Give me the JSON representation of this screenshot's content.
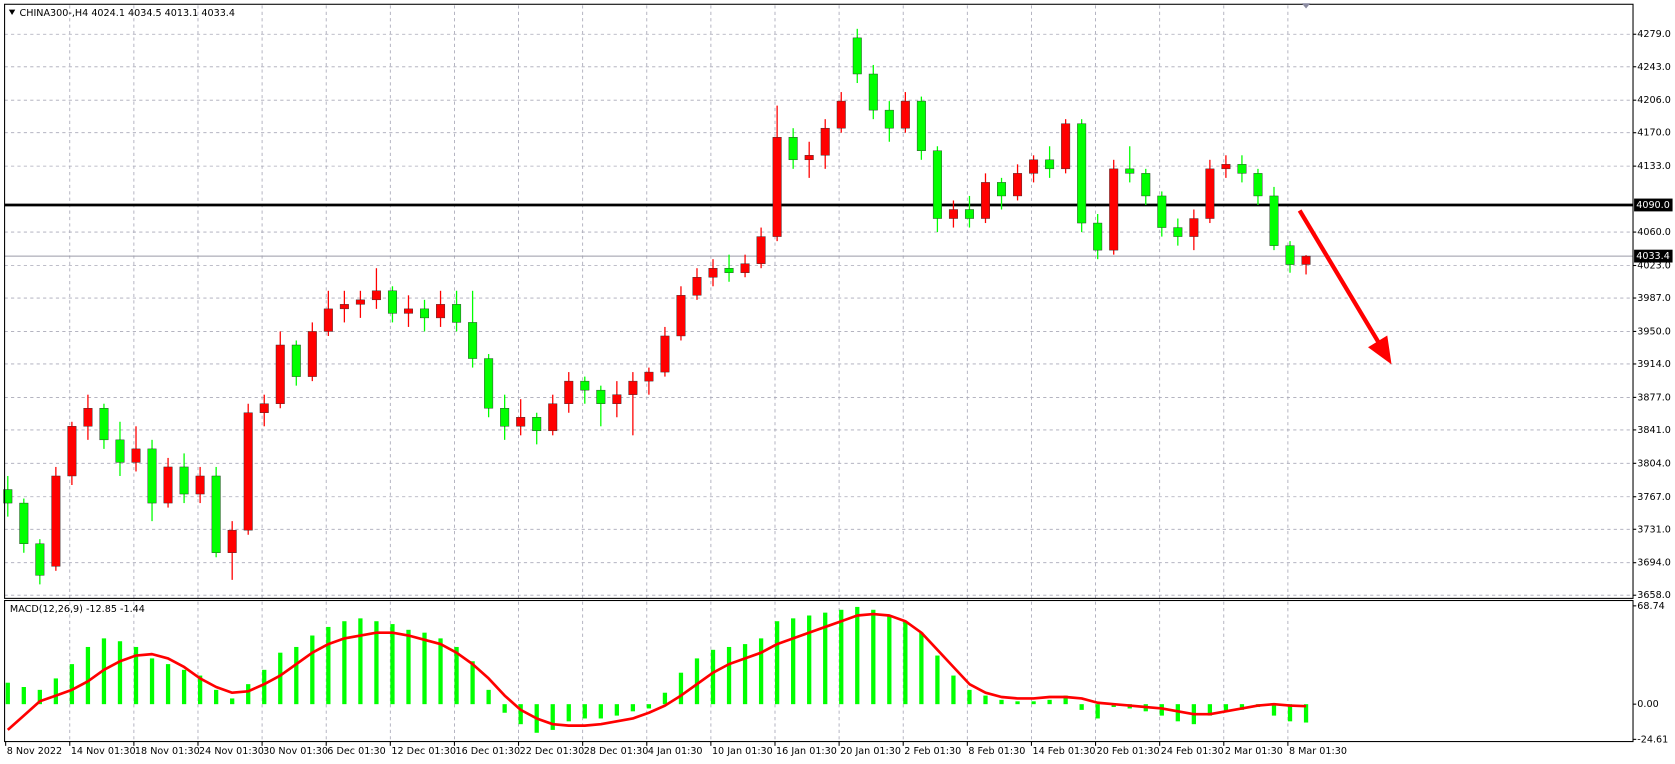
{
  "chart_data": [
    {
      "type": "candlestick",
      "title": "CHINA300-,H4  4024.1 4034.5 4013.1 4033.4",
      "up_color": "#ff0000",
      "down_color": "#00ff00",
      "categories": [
        "8 Nov 2022",
        null,
        null,
        null,
        "14 Nov 01:30",
        null,
        null,
        null,
        "18 Nov 01:30",
        null,
        null,
        null,
        "24 Nov 01:30",
        null,
        null,
        null,
        "30 Nov 01:30",
        null,
        null,
        null,
        "6 Dec 01:30",
        null,
        null,
        null,
        "12 Dec 01:30",
        null,
        null,
        null,
        "16 Dec 01:30",
        null,
        null,
        null,
        "22 Dec 01:30",
        null,
        null,
        null,
        "28 Dec 01:30",
        null,
        null,
        null,
        "4 Jan 01:30",
        null,
        null,
        null,
        "10 Jan 01:30",
        null,
        null,
        null,
        "16 Jan 01:30",
        null,
        null,
        null,
        "20 Jan 01:30",
        null,
        null,
        null,
        "2 Feb 01:30",
        null,
        null,
        null,
        "8 Feb 01:30",
        null,
        null,
        null,
        "14 Feb 01:30",
        null,
        null,
        null,
        "20 Feb 01:30",
        null,
        null,
        null,
        "24 Feb 01:30",
        null,
        null,
        null,
        "2 Mar 01:30",
        null,
        null,
        null,
        "8 Mar 01:30",
        null
      ],
      "open": [
        3775,
        3760,
        3715,
        3690,
        3790,
        3845,
        3865,
        3830,
        3805,
        3820,
        3760,
        3800,
        3770,
        3790,
        3705,
        3730,
        3860,
        3870,
        3935,
        3900,
        3950,
        3975,
        3980,
        3985,
        3995,
        3970,
        3975,
        3965,
        3980,
        3960,
        3920,
        3865,
        3845,
        3855,
        3840,
        3870,
        3895,
        3885,
        3870,
        3880,
        3895,
        3905,
        3945,
        3990,
        4010,
        4020,
        4015,
        4025,
        4055,
        4165,
        4140,
        4145,
        4175,
        4275,
        4235,
        4195,
        4175,
        4205,
        4150,
        4075,
        4085,
        4075,
        4115,
        4100,
        4125,
        4140,
        4130,
        4180,
        4070,
        4040,
        4130,
        4125,
        4100,
        4065,
        4055,
        4075,
        4130,
        4135,
        4125,
        4100,
        4045,
        4024.1
      ],
      "high": [
        3790,
        3765,
        3720,
        3800,
        3850,
        3880,
        3870,
        3850,
        3845,
        3830,
        3810,
        3815,
        3800,
        3800,
        3740,
        3870,
        3880,
        3950,
        3940,
        3960,
        3995,
        3995,
        3995,
        4020,
        4000,
        3990,
        3985,
        3995,
        3995,
        3995,
        3925,
        3880,
        3875,
        3860,
        3880,
        3905,
        3900,
        3890,
        3895,
        3905,
        3910,
        3955,
        4000,
        4020,
        4030,
        4035,
        4035,
        4065,
        4200,
        4175,
        4160,
        4185,
        4215,
        4285,
        4245,
        4205,
        4215,
        4210,
        4155,
        4095,
        4100,
        4125,
        4120,
        4135,
        4145,
        4155,
        4185,
        4185,
        4080,
        4140,
        4155,
        4130,
        4105,
        4075,
        4085,
        4140,
        4145,
        4145,
        4130,
        4110,
        4050,
        4034.5
      ],
      "low": [
        3745,
        3705,
        3670,
        3685,
        3780,
        3830,
        3820,
        3790,
        3795,
        3740,
        3755,
        3760,
        3760,
        3700,
        3675,
        3725,
        3845,
        3865,
        3890,
        3895,
        3945,
        3960,
        3965,
        3975,
        3960,
        3955,
        3950,
        3955,
        3950,
        3910,
        3855,
        3830,
        3835,
        3825,
        3835,
        3860,
        3870,
        3845,
        3855,
        3835,
        3880,
        3900,
        3940,
        3985,
        4000,
        4005,
        4010,
        4020,
        4050,
        4130,
        4120,
        4130,
        4170,
        4225,
        4185,
        4160,
        4170,
        4140,
        4060,
        4065,
        4065,
        4070,
        4085,
        4095,
        4115,
        4120,
        4125,
        4060,
        4030,
        4035,
        4115,
        4090,
        4055,
        4045,
        4040,
        4070,
        4120,
        4115,
        4090,
        4040,
        4015,
        4013.1
      ],
      "close": [
        3760,
        3715,
        3680,
        3790,
        3845,
        3865,
        3830,
        3805,
        3820,
        3760,
        3800,
        3770,
        3790,
        3705,
        3730,
        3860,
        3870,
        3935,
        3900,
        3950,
        3975,
        3980,
        3985,
        3995,
        3970,
        3975,
        3965,
        3980,
        3960,
        3920,
        3865,
        3845,
        3855,
        3840,
        3870,
        3895,
        3885,
        3870,
        3880,
        3895,
        3905,
        3945,
        3990,
        4010,
        4020,
        4015,
        4025,
        4055,
        4165,
        4140,
        4145,
        4175,
        4205,
        4235,
        4195,
        4175,
        4205,
        4150,
        4075,
        4085,
        4075,
        4115,
        4100,
        4125,
        4140,
        4130,
        4180,
        4070,
        4040,
        4130,
        4125,
        4100,
        4065,
        4055,
        4075,
        4130,
        4135,
        4125,
        4100,
        4045,
        4024,
        4033.4
      ],
      "ylim": [
        3654.5,
        4311
      ],
      "yticks": [
        {
          "value": 4279,
          "label": "4279.0"
        },
        {
          "value": 4243,
          "label": "4243.0"
        },
        {
          "value": 4206,
          "label": "4206.0"
        },
        {
          "value": 4170,
          "label": "4170.0"
        },
        {
          "value": 4133,
          "label": "4133.0"
        },
        {
          "value": 4060,
          "label": "4060.0"
        },
        {
          "value": 4023,
          "label": "4023.0"
        },
        {
          "value": 3987,
          "label": "3987.0"
        },
        {
          "value": 3950,
          "label": "3950.0"
        },
        {
          "value": 3914,
          "label": "3914.0"
        },
        {
          "value": 3877,
          "label": "3877.0"
        },
        {
          "value": 3841,
          "label": "3841.0"
        },
        {
          "value": 3804,
          "label": "3804.0"
        },
        {
          "value": 3767,
          "label": "3767.0"
        },
        {
          "value": 3731,
          "label": "3731.0"
        },
        {
          "value": 3694,
          "label": "3694.0"
        },
        {
          "value": 3658,
          "label": "3658.0"
        }
      ],
      "level": {
        "value": 4090,
        "label": "4090.0"
      },
      "last_price": {
        "value": 4033.4,
        "label": "4033.4"
      },
      "grid": true
    },
    {
      "type": "macd",
      "title": "MACD(12,26,9) -12.85 -1.44",
      "series": [
        {
          "name": "MACD",
          "color": "#00ff00",
          "kind": "histogram",
          "values": [
            15,
            12,
            10,
            18,
            28,
            40,
            46,
            44,
            40,
            32,
            28,
            24,
            20,
            10,
            4,
            14,
            24,
            36,
            40,
            48,
            54,
            58,
            60,
            58,
            56,
            52,
            50,
            46,
            40,
            30,
            10,
            -6,
            -14,
            -20,
            -18,
            -12,
            -10,
            -10,
            -8,
            -5,
            -3,
            8,
            22,
            32,
            38,
            40,
            42,
            46,
            58,
            60,
            62,
            64,
            66,
            68,
            66,
            62,
            58,
            50,
            34,
            20,
            10,
            6,
            3,
            2,
            2,
            3,
            6,
            -4,
            -10,
            -2,
            -3,
            -5,
            -8,
            -12,
            -14,
            -8,
            -5,
            -4,
            -2,
            -8,
            -12,
            -12.85
          ]
        },
        {
          "name": "Signal",
          "color": "#ff0000",
          "kind": "line",
          "values": [
            -18,
            -8,
            2,
            6,
            10,
            16,
            24,
            30,
            34,
            35,
            32,
            26,
            18,
            12,
            8,
            9,
            14,
            20,
            28,
            36,
            42,
            46,
            48,
            50,
            50,
            48,
            45,
            42,
            36,
            28,
            18,
            6,
            -4,
            -10,
            -14,
            -15,
            -15,
            -14,
            -12,
            -10,
            -6,
            -1,
            6,
            14,
            22,
            28,
            32,
            36,
            42,
            46,
            50,
            54,
            58,
            62,
            63,
            62,
            58,
            50,
            38,
            26,
            14,
            8,
            5,
            4,
            4,
            5,
            5,
            4,
            1,
            0,
            -1,
            -2,
            -3,
            -5,
            -7,
            -7,
            -5,
            -3,
            -1,
            0,
            -1,
            -1.44
          ]
        }
      ],
      "ylim": [
        -26.15,
        71.73
      ],
      "yticks": [
        {
          "value": 68.74,
          "label": "68.74"
        },
        {
          "value": 0,
          "label": "0.00"
        },
        {
          "value": -24.61,
          "label": "-24.61"
        }
      ]
    }
  ]
}
